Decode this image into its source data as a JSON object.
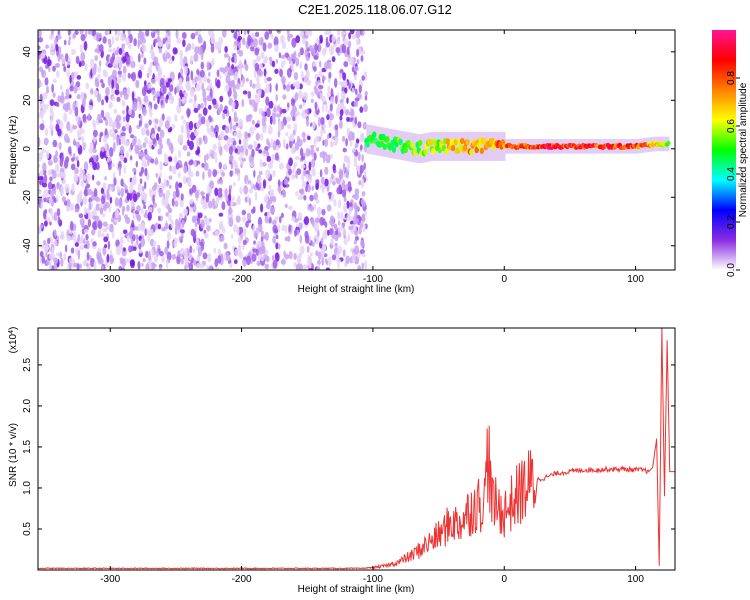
{
  "title": "C2E1.2025.118.06.07.G12",
  "chart_data": [
    {
      "type": "heatmap",
      "title": "",
      "xlabel": "Height of straight line (km)",
      "ylabel": "Frequency (Hz)",
      "xlim": [
        -355,
        130
      ],
      "ylim": [
        -50,
        49
      ],
      "x_ticks": [
        -300,
        -200,
        -100,
        0,
        100
      ],
      "x_tick_labels": [
        "-300",
        "-200",
        "-100",
        "0",
        "100"
      ],
      "y_ticks": [
        -40,
        -20,
        0,
        20,
        40
      ],
      "y_tick_labels": [
        "-40",
        "-20",
        "0",
        "20",
        "40"
      ],
      "colorbar": {
        "label": "Normalized spectral amplitude",
        "range": [
          0,
          1
        ],
        "ticks": [
          0.0,
          0.2,
          0.4,
          0.6,
          0.8
        ],
        "tick_labels": [
          "0.0",
          "0.2",
          "0.4",
          "0.6",
          "0.8"
        ],
        "colors": [
          "#ffffff",
          "#8a2be2",
          "#0000ff",
          "#00ffff",
          "#00ff00",
          "#ffff00",
          "#ff8000",
          "#ff0000",
          "#ff1493"
        ]
      },
      "noise_region": {
        "x_range": [
          -355,
          -105
        ],
        "amplitude": 0.12
      },
      "signal_band": [
        {
          "x": -105,
          "f": 4,
          "amp": 0.5
        },
        {
          "x": -95,
          "f": 3,
          "amp": 0.55
        },
        {
          "x": -85,
          "f": 2,
          "amp": 0.6
        },
        {
          "x": -75,
          "f": 1,
          "amp": 0.55
        },
        {
          "x": -65,
          "f": 0,
          "amp": 0.6
        },
        {
          "x": -55,
          "f": 1,
          "amp": 0.65
        },
        {
          "x": -45,
          "f": 1,
          "amp": 0.7
        },
        {
          "x": -35,
          "f": 1,
          "amp": 0.75
        },
        {
          "x": -25,
          "f": 1,
          "amp": 0.8
        },
        {
          "x": -15,
          "f": 1,
          "amp": 0.8
        },
        {
          "x": -5,
          "f": 1,
          "amp": 0.85
        },
        {
          "x": 5,
          "f": 1,
          "amp": 0.9
        },
        {
          "x": 20,
          "f": 1,
          "amp": 0.95
        },
        {
          "x": 40,
          "f": 1,
          "amp": 0.95
        },
        {
          "x": 60,
          "f": 1,
          "amp": 0.95
        },
        {
          "x": 80,
          "f": 1,
          "amp": 0.95
        },
        {
          "x": 100,
          "f": 1,
          "amp": 0.9
        },
        {
          "x": 115,
          "f": 2,
          "amp": 0.75
        },
        {
          "x": 125,
          "f": 2,
          "amp": 0.6
        }
      ]
    },
    {
      "type": "line",
      "title": "",
      "xlabel": "Height of straight line (km)",
      "ylabel": "SNR (10 * v/v)",
      "y_scale_label": "(x10",
      "y_scale_exponent": "4",
      "xlim": [
        -355,
        130
      ],
      "ylim": [
        0,
        2.95
      ],
      "x_ticks": [
        -300,
        -200,
        -100,
        0,
        100
      ],
      "x_tick_labels": [
        "-300",
        "-200",
        "-100",
        "0",
        "100"
      ],
      "y_ticks": [
        0.5,
        1.0,
        1.5,
        2.0,
        2.5
      ],
      "y_tick_labels": [
        "0.5",
        "1.0",
        "1.5",
        "2.0",
        "2.5"
      ],
      "line_color": "#ee3333",
      "x": [
        -355,
        -300,
        -200,
        -110,
        -100,
        -90,
        -80,
        -70,
        -60,
        -50,
        -45,
        -40,
        -35,
        -30,
        -25,
        -20,
        -15,
        -12,
        -10,
        -5,
        0,
        5,
        10,
        15,
        20,
        25,
        30,
        35,
        40,
        50,
        60,
        70,
        80,
        90,
        100,
        105,
        110,
        113,
        116,
        118,
        120,
        122,
        124,
        126,
        130
      ],
      "y": [
        0.02,
        0.02,
        0.02,
        0.02,
        0.03,
        0.05,
        0.1,
        0.18,
        0.3,
        0.42,
        0.5,
        0.6,
        0.55,
        0.65,
        0.75,
        0.8,
        0.85,
        1.55,
        0.85,
        0.75,
        0.7,
        0.8,
        0.9,
        1.0,
        1.05,
        1.1,
        1.12,
        1.15,
        1.18,
        1.2,
        1.22,
        1.22,
        1.23,
        1.23,
        1.22,
        1.22,
        1.2,
        1.25,
        1.6,
        0.05,
        2.95,
        0.9,
        2.8,
        1.2,
        1.2
      ]
    }
  ]
}
